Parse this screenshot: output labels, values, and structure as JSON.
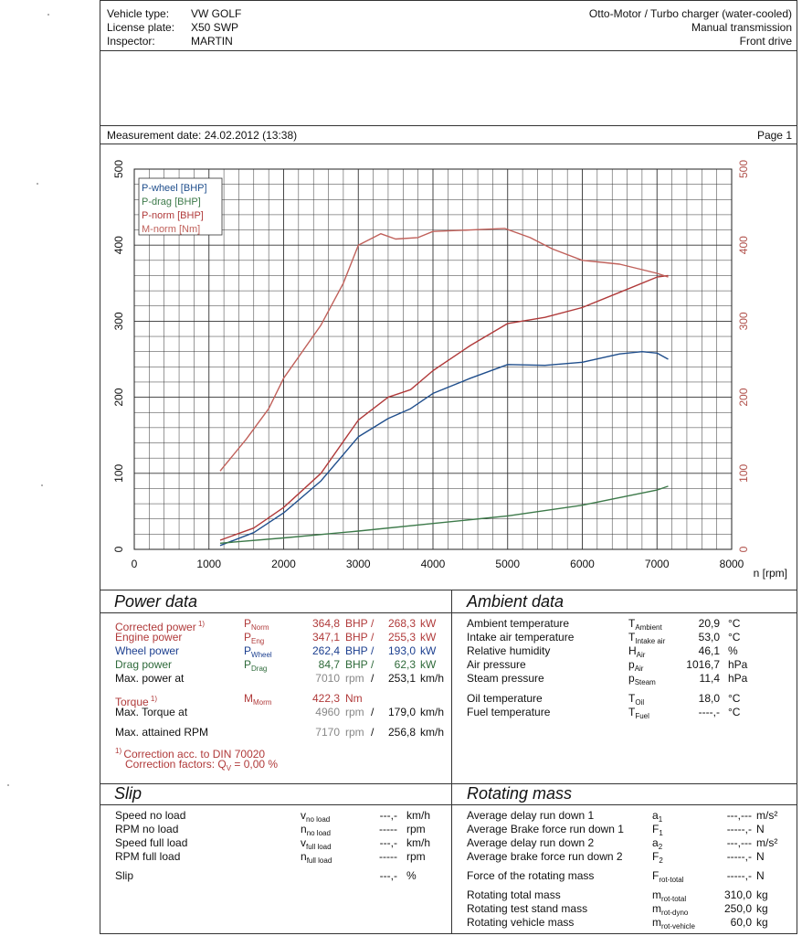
{
  "header": {
    "vehicle_type_label": "Vehicle type:",
    "vehicle_type": "VW GOLF",
    "license_label": "License plate:",
    "license": "X50 SWP",
    "inspector_label": "Inspector:",
    "inspector": "MARTIN",
    "engine": "Otto-Motor / Turbo charger (water-cooled)",
    "transmission": "Manual transmission",
    "drive": "Front drive"
  },
  "measurement": {
    "date_text": "Measurement date: 24.02.2012 (13:38)",
    "page": "Page 1"
  },
  "chart_data": {
    "type": "line",
    "xlabel": "n [rpm]",
    "xlim": [
      0,
      8000
    ],
    "ylim_left": [
      0,
      500
    ],
    "ylim_right": [
      0,
      500
    ],
    "x_ticks": [
      "0",
      "1000",
      "2000",
      "3000",
      "4000",
      "5000",
      "6000",
      "7000",
      "8000"
    ],
    "y_ticks_left": [
      "0",
      "100",
      "200",
      "300",
      "400",
      "500"
    ],
    "y_ticks_right": [
      "0",
      "100",
      "200",
      "300",
      "400",
      "500"
    ],
    "grid": true,
    "legend_position": "top-left",
    "legend": [
      "P-wheel [BHP]",
      "P-drag [BHP]",
      "P-norm [BHP]",
      "M-norm [Nm]"
    ],
    "colors": {
      "P-wheel": "#1f4e8c",
      "P-drag": "#3d7a4a",
      "P-norm": "#b03a3a",
      "M-norm": "#c0605a"
    },
    "series": [
      {
        "name": "P-wheel [BHP]",
        "points": [
          [
            1150,
            5
          ],
          [
            1600,
            22
          ],
          [
            2000,
            48
          ],
          [
            2500,
            90
          ],
          [
            3000,
            148
          ],
          [
            3400,
            172
          ],
          [
            3700,
            185
          ],
          [
            4000,
            205
          ],
          [
            4500,
            225
          ],
          [
            5000,
            243
          ],
          [
            5500,
            242
          ],
          [
            6000,
            246
          ],
          [
            6500,
            257
          ],
          [
            6800,
            260
          ],
          [
            7000,
            258
          ],
          [
            7150,
            250
          ]
        ]
      },
      {
        "name": "P-drag [BHP]",
        "points": [
          [
            1150,
            8
          ],
          [
            2000,
            15
          ],
          [
            3000,
            24
          ],
          [
            4000,
            34
          ],
          [
            5000,
            44
          ],
          [
            6000,
            58
          ],
          [
            7000,
            78
          ],
          [
            7150,
            83
          ]
        ]
      },
      {
        "name": "P-norm [BHP]",
        "points": [
          [
            1150,
            12
          ],
          [
            1600,
            28
          ],
          [
            2000,
            55
          ],
          [
            2500,
            100
          ],
          [
            3000,
            170
          ],
          [
            3400,
            200
          ],
          [
            3700,
            210
          ],
          [
            4000,
            235
          ],
          [
            4500,
            268
          ],
          [
            5000,
            297
          ],
          [
            5500,
            305
          ],
          [
            6000,
            318
          ],
          [
            6500,
            338
          ],
          [
            7000,
            358
          ],
          [
            7150,
            360
          ]
        ]
      },
      {
        "name": "M-norm [Nm]",
        "points": [
          [
            1150,
            103
          ],
          [
            1500,
            145
          ],
          [
            1800,
            185
          ],
          [
            2000,
            225
          ],
          [
            2500,
            295
          ],
          [
            2800,
            350
          ],
          [
            3000,
            400
          ],
          [
            3300,
            415
          ],
          [
            3500,
            408
          ],
          [
            3800,
            410
          ],
          [
            4000,
            418
          ],
          [
            4500,
            420
          ],
          [
            4960,
            422
          ],
          [
            5300,
            410
          ],
          [
            5600,
            395
          ],
          [
            6000,
            380
          ],
          [
            6500,
            375
          ],
          [
            7000,
            363
          ],
          [
            7150,
            358
          ]
        ]
      }
    ]
  },
  "power": {
    "title": "Power data",
    "rows": [
      {
        "label": "Corrected power",
        "sup": "1)",
        "sym": "P",
        "sub": "Norm",
        "v1": "364,8",
        "u1": "BHP",
        "sep": "/",
        "v2": "268,3",
        "u2": "kW"
      },
      {
        "label": "Engine power",
        "sym": "P",
        "sub": "Eng",
        "v1": "347,1",
        "u1": "BHP",
        "sep": "/",
        "v2": "255,3",
        "u2": "kW"
      },
      {
        "label": "Wheel power",
        "sym": "P",
        "sub": "Wheel",
        "v1": "262,4",
        "u1": "BHP",
        "sep": "/",
        "v2": "193,0",
        "u2": "kW"
      },
      {
        "label": "Drag power",
        "sym": "P",
        "sub": "Drag",
        "v1": "84,7",
        "u1": "BHP",
        "sep": "/",
        "v2": "62,3",
        "u2": "kW"
      },
      {
        "label": "Max. power at",
        "v1": "7010",
        "u1": "rpm",
        "sep": "/",
        "v2": "253,1",
        "u2": "km/h"
      }
    ],
    "torque": {
      "label": "Torque",
      "sup": "1)",
      "sym": "M",
      "sub": "Morm",
      "v1": "422,3",
      "u1": "Nm"
    },
    "max_torque": {
      "label": "Max. Torque at",
      "v1": "4960",
      "u1": "rpm",
      "sep": "/",
      "v2": "179,0",
      "u2": "km/h"
    },
    "max_rpm": {
      "label": "Max. attained RPM",
      "v1": "7170",
      "u1": "rpm",
      "sep": "/",
      "v2": "256,8",
      "u2": "km/h"
    },
    "note_sup": "1)",
    "note1": "Correction acc. to DIN 70020",
    "note2_prefix": "Correction factors: Q",
    "note2_sub": "V",
    "note2_suffix": " =   0,00 %"
  },
  "ambient": {
    "title": "Ambient data",
    "rows": [
      {
        "label": "Ambient temperature",
        "sym": "T",
        "sub": "Ambient",
        "val": "20,9",
        "unit": "°C"
      },
      {
        "label": "Intake air temperature",
        "sym": "T",
        "sub": "Intake air",
        "val": "53,0",
        "unit": "°C"
      },
      {
        "label": "Relative humidity",
        "sym": "H",
        "sub": "Air",
        "val": "46,1",
        "unit": "%"
      },
      {
        "label": "Air pressure",
        "sym": "p",
        "sub": "Air",
        "val": "1016,7",
        "unit": "hPa"
      },
      {
        "label": "Steam pressure",
        "sym": "p",
        "sub": "Steam",
        "val": "11,4",
        "unit": "hPa"
      },
      {
        "label": "Oil temperature",
        "sym": "T",
        "sub": "Oil",
        "val": "18,0",
        "unit": "°C"
      },
      {
        "label": "Fuel temperature",
        "sym": "T",
        "sub": "Fuel",
        "val": "----,-",
        "unit": "°C"
      }
    ]
  },
  "slip": {
    "title": "Slip",
    "rows": [
      {
        "label": "Speed no load",
        "sym": "v",
        "sub": "no load",
        "val": "---,-",
        "unit": "km/h"
      },
      {
        "label": "RPM no load",
        "sym": "n",
        "sub": "no load",
        "val": "-----",
        "unit": "rpm"
      },
      {
        "label": "Speed full load",
        "sym": "v",
        "sub": "full load",
        "val": "---,-",
        "unit": "km/h"
      },
      {
        "label": "RPM full load",
        "sym": "n",
        "sub": "full load",
        "val": "-----",
        "unit": "rpm"
      },
      {
        "label": "Slip",
        "sym": "",
        "sub": "",
        "val": "---,-",
        "unit": "%"
      }
    ]
  },
  "rotating": {
    "title": "Rotating mass",
    "rows": [
      {
        "label": "Average delay run down 1",
        "sym": "a",
        "sub": "1",
        "val": "---,---",
        "unit": "m/s²"
      },
      {
        "label": "Average Brake force run down 1",
        "sym": "F",
        "sub": "1",
        "val": "-----,-",
        "unit": "N"
      },
      {
        "label": "Average delay run down 2",
        "sym": "a",
        "sub": "2",
        "val": "---,---",
        "unit": "m/s²"
      },
      {
        "label": "Average brake force run down 2",
        "sym": "F",
        "sub": "2",
        "val": "-----,-",
        "unit": "N"
      },
      {
        "label": "Force of the rotating mass",
        "sym": "F",
        "sub": "rot-total",
        "val": "-----,-",
        "unit": "N"
      },
      {
        "label": "Rotating total mass",
        "sym": "m",
        "sub": "rot-total",
        "val": "310,0",
        "unit": "kg"
      },
      {
        "label": "Rotating test stand mass",
        "sym": "m",
        "sub": "rot-dyno",
        "val": "250,0",
        "unit": "kg"
      },
      {
        "label": "Rotating vehicle mass",
        "sym": "m",
        "sub": "rot-vehicle",
        "val": "60,0",
        "unit": "kg"
      }
    ]
  }
}
